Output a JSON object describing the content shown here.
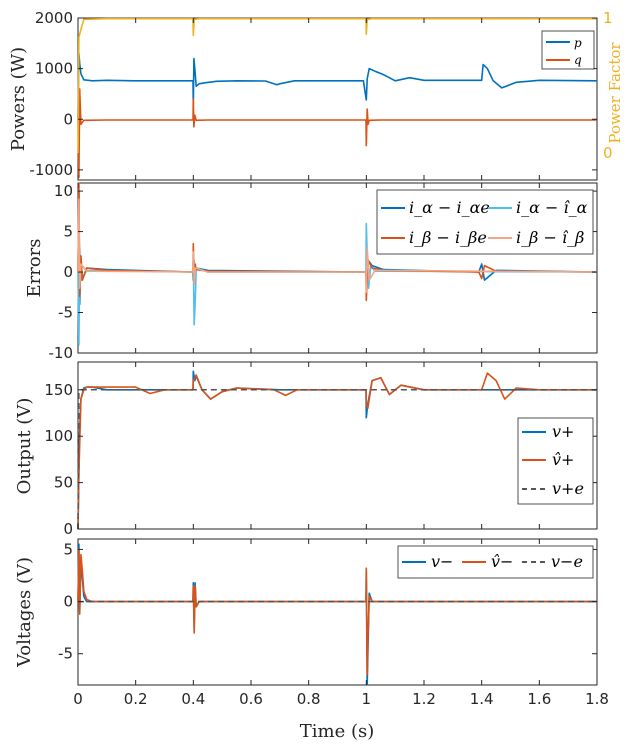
{
  "colors": {
    "blue": "#0072BD",
    "orange": "#D95319",
    "yellow": "#EDB120",
    "light_blue": "#4DBEEE",
    "light_orange": "#F4A582",
    "dashed_gray": "#555555",
    "axis": "#262626",
    "grid": "#e0e0e0"
  },
  "chart_data": [
    {
      "type": "line",
      "panel": "powers",
      "ylabel": "Powers (W)",
      "ylabel_right": "Power Factor",
      "ylim": [
        -1200,
        2000
      ],
      "y2lim": [
        -0.2,
        1
      ],
      "yticks": [
        -1000,
        0,
        1000,
        2000
      ],
      "ytick_labels": [
        "-1000",
        "0",
        "1000",
        "2000"
      ],
      "y2ticks": [
        0,
        1
      ],
      "y2tick_labels": [
        "0",
        "1"
      ],
      "xlim": [
        0,
        1.8
      ],
      "legend_position": "top-right",
      "series": [
        {
          "name": "p",
          "color": "blue",
          "x": [
            0,
            0.003,
            0.006,
            0.01,
            0.02,
            0.05,
            0.1,
            0.2,
            0.399,
            0.4,
            0.402,
            0.405,
            0.41,
            0.42,
            0.44,
            0.48,
            0.55,
            0.65,
            0.69,
            0.7,
            0.75,
            0.85,
            0.99,
            1.0,
            1.003,
            1.01,
            1.03,
            1.06,
            1.1,
            1.15,
            1.2,
            1.4,
            1.405,
            1.42,
            1.44,
            1.47,
            1.52,
            1.6,
            1.8
          ],
          "y": [
            0,
            1300,
            1100,
            900,
            780,
            760,
            770,
            760,
            760,
            300,
            1200,
            1000,
            650,
            700,
            720,
            750,
            760,
            755,
            680,
            700,
            760,
            760,
            760,
            380,
            800,
            1000,
            950,
            880,
            760,
            820,
            770,
            770,
            1080,
            1000,
            760,
            620,
            730,
            770,
            760
          ]
        },
        {
          "name": "q",
          "color": "orange",
          "x": [
            0,
            0.003,
            0.006,
            0.01,
            0.02,
            0.1,
            0.399,
            0.4,
            0.402,
            0.405,
            0.41,
            0.45,
            0.999,
            1.0,
            1.003,
            1.006,
            1.01,
            1.05,
            1.8
          ],
          "y": [
            0,
            -1150,
            600,
            -100,
            -20,
            -15,
            -15,
            400,
            -150,
            80,
            -20,
            -15,
            -15,
            -520,
            200,
            -100,
            -20,
            -15,
            -15
          ]
        },
        {
          "name": "",
          "color": "yellow",
          "axis": "right",
          "x": [
            0,
            0.003,
            0.02,
            0.1,
            0.399,
            0.4,
            0.403,
            0.42,
            0.999,
            1.0,
            1.003,
            1.02,
            1.8
          ],
          "y": [
            0,
            0.86,
            0.99,
            0.995,
            0.995,
            0.87,
            0.99,
            0.995,
            0.995,
            0.88,
            0.99,
            0.995,
            0.995
          ]
        }
      ],
      "legend": [
        "p",
        "q"
      ]
    },
    {
      "type": "line",
      "panel": "errors",
      "ylabel": "Errors",
      "ylim": [
        -10,
        11
      ],
      "yticks": [
        -10,
        -5,
        0,
        5,
        10
      ],
      "ytick_labels": [
        "-10",
        "-5",
        "0",
        "5",
        "10"
      ],
      "xlim": [
        0,
        1.8
      ],
      "legend_position": "top-right",
      "series": [
        {
          "name": "i_alpha - i_alpha_e",
          "color": "blue",
          "x": [
            0,
            0.003,
            0.006,
            0.01,
            0.015,
            0.03,
            0.1,
            0.399,
            0.4,
            0.402,
            0.405,
            0.41,
            0.45,
            0.999,
            1.0,
            1.005,
            1.02,
            1.06,
            1.39,
            1.4,
            1.41,
            1.45,
            1.8
          ],
          "y": [
            0,
            10,
            -4,
            2,
            -1,
            0.5,
            0.3,
            0,
            -1,
            1.5,
            -1,
            0.5,
            0.2,
            0,
            -1.5,
            1.5,
            0.8,
            0.3,
            0,
            1,
            -1,
            0.2,
            0
          ]
        },
        {
          "name": "i_alpha - i_alpha_hat",
          "color": "light_blue",
          "x": [
            0,
            0.003,
            0.006,
            0.01,
            0.03,
            0.399,
            0.4,
            0.403,
            0.407,
            0.41,
            0.45,
            0.999,
            1.0,
            1.003,
            1.008,
            1.015,
            1.03,
            1.8
          ],
          "y": [
            0,
            -9,
            3,
            -1,
            0.2,
            0,
            1.5,
            -6.5,
            -3,
            0.5,
            0,
            0,
            6,
            2,
            -2,
            0.8,
            0.1,
            0
          ]
        },
        {
          "name": "i_beta - i_beta_e",
          "color": "orange",
          "x": [
            0,
            0.003,
            0.006,
            0.01,
            0.015,
            0.03,
            0.1,
            0.399,
            0.4,
            0.403,
            0.406,
            0.41,
            0.45,
            0.999,
            1.0,
            1.005,
            1.02,
            1.06,
            1.39,
            1.4,
            1.41,
            1.45,
            1.8
          ],
          "y": [
            0,
            11,
            -3,
            2,
            -1,
            0.5,
            0.2,
            0,
            3.5,
            -1.5,
            1,
            0.3,
            0.1,
            0,
            -3.5,
            1.5,
            0.5,
            0.2,
            0,
            -0.8,
            0.8,
            0.1,
            0
          ]
        },
        {
          "name": "i_beta - i_beta_hat",
          "color": "light_orange",
          "x": [
            0,
            0.003,
            0.006,
            0.01,
            0.03,
            0.399,
            0.4,
            0.403,
            0.407,
            0.45,
            0.999,
            1.0,
            1.003,
            1.01,
            1.03,
            1.8
          ],
          "y": [
            0,
            9,
            -2,
            1,
            0.1,
            0,
            2.5,
            -1.5,
            0.5,
            0,
            0,
            -2.5,
            3,
            -1,
            0.2,
            0
          ]
        }
      ],
      "legend": [
        "i_α − i_αe",
        "i_α − î_α",
        "i_β − i_βe",
        "i_β − î_β"
      ]
    },
    {
      "type": "line",
      "panel": "output",
      "ylabel": "Output (V)",
      "ylim": [
        0,
        180
      ],
      "yticks": [
        0,
        50,
        100,
        150
      ],
      "ytick_labels": [
        "0",
        "50",
        "100",
        "150"
      ],
      "xlim": [
        0,
        1.8
      ],
      "legend_position": "right",
      "series": [
        {
          "name": "v+",
          "color": "blue",
          "x": [
            0,
            0.005,
            0.01,
            0.02,
            0.03,
            0.05,
            0.1,
            0.399,
            0.4,
            0.405,
            0.41,
            0.43,
            0.46,
            0.5,
            0.55,
            0.7,
            0.999,
            1.0,
            1.005,
            1.02,
            1.05,
            1.08,
            1.12,
            1.2,
            1.4,
            1.8
          ],
          "y": [
            0,
            100,
            140,
            152,
            153,
            153,
            150,
            150,
            170,
            160,
            165,
            150,
            140,
            148,
            152,
            150,
            150,
            120,
            135,
            160,
            163,
            145,
            155,
            150,
            150,
            150
          ]
        },
        {
          "name": "v̂+",
          "color": "orange",
          "x": [
            0,
            0.003,
            0.01,
            0.02,
            0.03,
            0.05,
            0.15,
            0.2,
            0.25,
            0.3,
            0.399,
            0.4,
            0.41,
            0.43,
            0.46,
            0.5,
            0.55,
            0.68,
            0.72,
            0.76,
            0.999,
            1.0,
            1.005,
            1.02,
            1.05,
            1.08,
            1.12,
            1.2,
            1.4,
            1.42,
            1.45,
            1.48,
            1.52,
            1.6,
            1.8
          ],
          "y": [
            0,
            60,
            140,
            150,
            153,
            153,
            153,
            153,
            146,
            150,
            150,
            160,
            166,
            150,
            140,
            148,
            152,
            150,
            144,
            150,
            150,
            135,
            130,
            160,
            163,
            145,
            155,
            150,
            150,
            168,
            160,
            140,
            152,
            150,
            150
          ]
        },
        {
          "name": "v+e",
          "color": "dashed_gray",
          "dashed": true,
          "x": [
            0,
            0.003,
            0.01,
            1.8
          ],
          "y": [
            0,
            148,
            150,
            150
          ]
        }
      ],
      "legend": [
        "v+",
        "v̂+",
        "v+e"
      ]
    },
    {
      "type": "line",
      "panel": "voltages",
      "ylabel": "Voltages (V)",
      "xlabel": "Time (s)",
      "ylim": [
        -8,
        6
      ],
      "yticks": [
        -5,
        0,
        5
      ],
      "ytick_labels": [
        "-5",
        "0",
        "5"
      ],
      "xlim": [
        0,
        1.8
      ],
      "xticks": [
        0,
        0.2,
        0.4,
        0.6,
        0.8,
        1,
        1.2,
        1.4,
        1.6,
        1.8
      ],
      "xtick_labels": [
        "0",
        "0.2",
        "0.4",
        "0.6",
        "0.8",
        "1",
        "1.2",
        "1.4",
        "1.6",
        "1.8"
      ],
      "legend_position": "top-right",
      "series": [
        {
          "name": "v−",
          "color": "blue",
          "x": [
            0,
            0.003,
            0.006,
            0.01,
            0.02,
            0.03,
            0.05,
            0.399,
            0.4,
            0.403,
            0.406,
            0.41,
            0.42,
            0.999,
            1.0,
            1.003,
            1.006,
            1.01,
            1.02,
            1.8
          ],
          "y": [
            0,
            5.5,
            -1,
            4,
            0.5,
            0,
            0,
            0,
            1.8,
            -2.5,
            1.8,
            -0.5,
            0,
            0,
            3,
            -8,
            -4,
            0.8,
            0,
            0
          ]
        },
        {
          "name": "v̂−",
          "color": "orange",
          "x": [
            0,
            0.003,
            0.006,
            0.01,
            0.015,
            0.02,
            0.03,
            0.05,
            0.399,
            0.4,
            0.403,
            0.406,
            0.41,
            0.42,
            0.999,
            1.0,
            1.003,
            1.006,
            1.01,
            1.02,
            1.8
          ],
          "y": [
            0,
            5,
            -1.2,
            4.5,
            3,
            1,
            0.2,
            0,
            0,
            1.5,
            -3,
            1.5,
            -0.5,
            0,
            0,
            3.2,
            -7,
            -3,
            0.5,
            0,
            0
          ]
        },
        {
          "name": "v−e",
          "color": "dashed_gray",
          "dashed": true,
          "x": [
            0,
            1.8
          ],
          "y": [
            0,
            0
          ]
        }
      ],
      "legend": [
        "v−",
        "v̂−",
        "v−e"
      ]
    }
  ]
}
